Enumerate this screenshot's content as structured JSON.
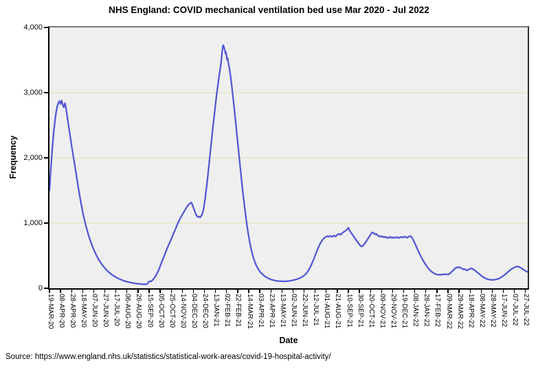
{
  "source": {
    "text": "Source: https://www.england.nhs.uk/statistics/statistical-work-areas/covid-19-hospital-activity/"
  },
  "chart_data": {
    "type": "line",
    "title": "NHS England: COVID mechanical ventilation bed use Mar 2020 - Jul 2022",
    "xlabel": "Date",
    "ylabel": "Frequency",
    "x_unit": "days since 19-MAR-20",
    "x_range": [
      0,
      864
    ],
    "ylim": [
      0,
      4000
    ],
    "grid_on": true,
    "gridlines": [
      1000,
      2000,
      3000
    ],
    "legend": "none",
    "plot_bg": "#efefef",
    "grid_color": "#e5e2c0",
    "line_color": "#5358d4",
    "y_ticks": [
      {
        "value": 0,
        "label": "0"
      },
      {
        "value": 1000,
        "label": "1,000"
      },
      {
        "value": 2000,
        "label": "2,000"
      },
      {
        "value": 3000,
        "label": "3,000"
      },
      {
        "value": 4000,
        "label": "4,000"
      }
    ],
    "x_tick_step_days": 20,
    "x_tick_labels": [
      "19-MAR-20",
      "08-APR-20",
      "28-APR-20",
      "18-MAY-20",
      "07-JUN-20",
      "27-JUN-20",
      "17-JUL-20",
      "06-AUG-20",
      "26-AUG-20",
      "15-SEP-20",
      "05-OCT-20",
      "25-OCT-20",
      "14-NOV-20",
      "04-DEC-20",
      "24-DEC-20",
      "13-JAN-21",
      "02-FEB-21",
      "22-FEB-21",
      "14-MAR-21",
      "03-APR-21",
      "23-APR-21",
      "13-MAY-21",
      "02-JUN-21",
      "22-JUN-21",
      "12-JUL-21",
      "01-AUG-21",
      "21-AUG-21",
      "10-SEP-21",
      "30-SEP-21",
      "20-OCT-21",
      "09-NOV-21",
      "29-NOV-21",
      "19-DEC-21",
      "08-JAN-22",
      "28-JAN-22",
      "17-FEB-22",
      "09-MAR-22",
      "29-MAR-22",
      "18-APR-22",
      "08-MAY-22",
      "28-MAY-22",
      "17-JUN-22",
      "07-JUL-22",
      "27-JUL-22"
    ],
    "points": [
      [
        0,
        1500
      ],
      [
        2,
        1760
      ],
      [
        4,
        2010
      ],
      [
        6,
        2230
      ],
      [
        8,
        2420
      ],
      [
        10,
        2580
      ],
      [
        12,
        2700
      ],
      [
        14,
        2790
      ],
      [
        16,
        2845
      ],
      [
        18,
        2870
      ],
      [
        20,
        2825
      ],
      [
        22,
        2880
      ],
      [
        24,
        2815
      ],
      [
        26,
        2775
      ],
      [
        28,
        2840
      ],
      [
        30,
        2755
      ],
      [
        32,
        2640
      ],
      [
        34,
        2520
      ],
      [
        36,
        2410
      ],
      [
        38,
        2300
      ],
      [
        40,
        2190
      ],
      [
        43,
        2030
      ],
      [
        46,
        1870
      ],
      [
        49,
        1710
      ],
      [
        52,
        1550
      ],
      [
        55,
        1400
      ],
      [
        58,
        1260
      ],
      [
        61,
        1130
      ],
      [
        64,
        1020
      ],
      [
        67,
        920
      ],
      [
        70,
        830
      ],
      [
        73,
        750
      ],
      [
        76,
        680
      ],
      [
        79,
        615
      ],
      [
        82,
        555
      ],
      [
        85,
        500
      ],
      [
        88,
        455
      ],
      [
        91,
        412
      ],
      [
        94,
        374
      ],
      [
        97,
        340
      ],
      [
        100,
        309
      ],
      [
        103,
        281
      ],
      [
        106,
        256
      ],
      [
        109,
        234
      ],
      [
        112,
        214
      ],
      [
        115,
        196
      ],
      [
        118,
        180
      ],
      [
        121,
        165
      ],
      [
        124,
        152
      ],
      [
        127,
        140
      ],
      [
        130,
        129
      ],
      [
        133,
        119
      ],
      [
        136,
        111
      ],
      [
        139,
        103
      ],
      [
        142,
        96
      ],
      [
        145,
        90
      ],
      [
        148,
        85
      ],
      [
        151,
        80
      ],
      [
        154,
        76
      ],
      [
        157,
        72
      ],
      [
        160,
        69
      ],
      [
        163,
        66
      ],
      [
        166,
        64
      ],
      [
        169,
        62
      ],
      [
        172,
        61
      ],
      [
        175,
        62
      ],
      [
        177,
        70
      ],
      [
        179,
        95
      ],
      [
        181,
        108
      ],
      [
        183,
        103
      ],
      [
        185,
        115
      ],
      [
        188,
        142
      ],
      [
        191,
        178
      ],
      [
        194,
        222
      ],
      [
        197,
        275
      ],
      [
        200,
        338
      ],
      [
        203,
        405
      ],
      [
        206,
        470
      ],
      [
        209,
        535
      ],
      [
        212,
        598
      ],
      [
        215,
        658
      ],
      [
        218,
        716
      ],
      [
        221,
        775
      ],
      [
        224,
        836
      ],
      [
        227,
        896
      ],
      [
        230,
        958
      ],
      [
        233,
        1018
      ],
      [
        236,
        1068
      ],
      [
        239,
        1114
      ],
      [
        242,
        1158
      ],
      [
        245,
        1202
      ],
      [
        248,
        1244
      ],
      [
        251,
        1278
      ],
      [
        254,
        1302
      ],
      [
        256,
        1315
      ],
      [
        258,
        1288
      ],
      [
        260,
        1240
      ],
      [
        262,
        1190
      ],
      [
        264,
        1146
      ],
      [
        266,
        1112
      ],
      [
        268,
        1092
      ],
      [
        270,
        1102
      ],
      [
        272,
        1086
      ],
      [
        274,
        1104
      ],
      [
        276,
        1140
      ],
      [
        278,
        1198
      ],
      [
        280,
        1300
      ],
      [
        282,
        1430
      ],
      [
        284,
        1568
      ],
      [
        286,
        1718
      ],
      [
        288,
        1878
      ],
      [
        290,
        2040
      ],
      [
        292,
        2200
      ],
      [
        294,
        2360
      ],
      [
        296,
        2520
      ],
      [
        298,
        2678
      ],
      [
        300,
        2830
      ],
      [
        302,
        2968
      ],
      [
        304,
        3098
      ],
      [
        306,
        3222
      ],
      [
        308,
        3338
      ],
      [
        310,
        3450
      ],
      [
        311,
        3540
      ],
      [
        312,
        3625
      ],
      [
        313,
        3695
      ],
      [
        314,
        3730
      ],
      [
        315,
        3705
      ],
      [
        316,
        3672
      ],
      [
        317,
        3648
      ],
      [
        318,
        3598
      ],
      [
        319,
        3618
      ],
      [
        320,
        3560
      ],
      [
        321,
        3505
      ],
      [
        322,
        3528
      ],
      [
        323,
        3465
      ],
      [
        325,
        3380
      ],
      [
        327,
        3268
      ],
      [
        329,
        3130
      ],
      [
        331,
        2980
      ],
      [
        333,
        2820
      ],
      [
        335,
        2660
      ],
      [
        337,
        2495
      ],
      [
        339,
        2330
      ],
      [
        341,
        2160
      ],
      [
        343,
        1995
      ],
      [
        345,
        1830
      ],
      [
        347,
        1665
      ],
      [
        349,
        1505
      ],
      [
        351,
        1355
      ],
      [
        353,
        1215
      ],
      [
        355,
        1080
      ],
      [
        357,
        955
      ],
      [
        359,
        845
      ],
      [
        361,
        745
      ],
      [
        363,
        655
      ],
      [
        365,
        578
      ],
      [
        367,
        510
      ],
      [
        369,
        452
      ],
      [
        371,
        404
      ],
      [
        373,
        362
      ],
      [
        375,
        326
      ],
      [
        377,
        297
      ],
      [
        379,
        271
      ],
      [
        381,
        249
      ],
      [
        383,
        230
      ],
      [
        385,
        213
      ],
      [
        387,
        198
      ],
      [
        389,
        185
      ],
      [
        391,
        174
      ],
      [
        393,
        163
      ],
      [
        395,
        154
      ],
      [
        397,
        146
      ],
      [
        399,
        139
      ],
      [
        401,
        133
      ],
      [
        403,
        128
      ],
      [
        405,
        123
      ],
      [
        407,
        119
      ],
      [
        409,
        116
      ],
      [
        411,
        113
      ],
      [
        413,
        111
      ],
      [
        415,
        109
      ],
      [
        417,
        108
      ],
      [
        419,
        107
      ],
      [
        421,
        106
      ],
      [
        424,
        106
      ],
      [
        427,
        107
      ],
      [
        430,
        109
      ],
      [
        433,
        112
      ],
      [
        436,
        116
      ],
      [
        439,
        121
      ],
      [
        442,
        127
      ],
      [
        445,
        134
      ],
      [
        448,
        142
      ],
      [
        451,
        152
      ],
      [
        454,
        164
      ],
      [
        457,
        178
      ],
      [
        460,
        196
      ],
      [
        463,
        218
      ],
      [
        466,
        248
      ],
      [
        469,
        288
      ],
      [
        472,
        338
      ],
      [
        475,
        395
      ],
      [
        478,
        458
      ],
      [
        481,
        525
      ],
      [
        484,
        590
      ],
      [
        487,
        648
      ],
      [
        490,
        698
      ],
      [
        493,
        738
      ],
      [
        496,
        768
      ],
      [
        499,
        788
      ],
      [
        502,
        800
      ],
      [
        505,
        790
      ],
      [
        508,
        804
      ],
      [
        511,
        788
      ],
      [
        514,
        810
      ],
      [
        517,
        794
      ],
      [
        520,
        822
      ],
      [
        523,
        836
      ],
      [
        526,
        820
      ],
      [
        529,
        846
      ],
      [
        532,
        866
      ],
      [
        535,
        882
      ],
      [
        538,
        906
      ],
      [
        540,
        928
      ],
      [
        542,
        892
      ],
      [
        544,
        862
      ],
      [
        546,
        840
      ],
      [
        548,
        815
      ],
      [
        550,
        790
      ],
      [
        552,
        764
      ],
      [
        554,
        740
      ],
      [
        556,
        716
      ],
      [
        558,
        694
      ],
      [
        560,
        672
      ],
      [
        562,
        652
      ],
      [
        564,
        640
      ],
      [
        566,
        652
      ],
      [
        568,
        668
      ],
      [
        570,
        690
      ],
      [
        572,
        716
      ],
      [
        574,
        742
      ],
      [
        576,
        768
      ],
      [
        578,
        796
      ],
      [
        580,
        822
      ],
      [
        582,
        846
      ],
      [
        584,
        858
      ],
      [
        586,
        842
      ],
      [
        588,
        826
      ],
      [
        590,
        838
      ],
      [
        592,
        820
      ],
      [
        594,
        806
      ],
      [
        596,
        792
      ],
      [
        598,
        802
      ],
      [
        600,
        788
      ],
      [
        602,
        796
      ],
      [
        604,
        782
      ],
      [
        606,
        790
      ],
      [
        608,
        776
      ],
      [
        610,
        784
      ],
      [
        612,
        772
      ],
      [
        614,
        780
      ],
      [
        616,
        788
      ],
      [
        618,
        774
      ],
      [
        620,
        782
      ],
      [
        622,
        770
      ],
      [
        624,
        778
      ],
      [
        626,
        786
      ],
      [
        628,
        774
      ],
      [
        630,
        784
      ],
      [
        632,
        772
      ],
      [
        634,
        780
      ],
      [
        636,
        790
      ],
      [
        638,
        778
      ],
      [
        640,
        786
      ],
      [
        642,
        794
      ],
      [
        644,
        782
      ],
      [
        646,
        774
      ],
      [
        648,
        786
      ],
      [
        650,
        796
      ],
      [
        652,
        802
      ],
      [
        654,
        786
      ],
      [
        656,
        760
      ],
      [
        658,
        728
      ],
      [
        660,
        692
      ],
      [
        662,
        654
      ],
      [
        664,
        616
      ],
      [
        666,
        578
      ],
      [
        668,
        542
      ],
      [
        670,
        507
      ],
      [
        672,
        474
      ],
      [
        674,
        442
      ],
      [
        676,
        412
      ],
      [
        678,
        384
      ],
      [
        680,
        358
      ],
      [
        682,
        334
      ],
      [
        684,
        312
      ],
      [
        686,
        292
      ],
      [
        688,
        274
      ],
      [
        690,
        258
      ],
      [
        692,
        245
      ],
      [
        694,
        233
      ],
      [
        696,
        224
      ],
      [
        698,
        217
      ],
      [
        700,
        211
      ],
      [
        702,
        207
      ],
      [
        704,
        210
      ],
      [
        706,
        205
      ],
      [
        708,
        213
      ],
      [
        710,
        208
      ],
      [
        712,
        216
      ],
      [
        714,
        211
      ],
      [
        716,
        219
      ],
      [
        718,
        214
      ],
      [
        720,
        210
      ],
      [
        722,
        219
      ],
      [
        724,
        231
      ],
      [
        726,
        246
      ],
      [
        728,
        263
      ],
      [
        730,
        281
      ],
      [
        732,
        298
      ],
      [
        734,
        312
      ],
      [
        736,
        322
      ],
      [
        738,
        315
      ],
      [
        740,
        326
      ],
      [
        742,
        318
      ],
      [
        744,
        308
      ],
      [
        746,
        298
      ],
      [
        748,
        289
      ],
      [
        750,
        296
      ],
      [
        752,
        284
      ],
      [
        754,
        274
      ],
      [
        756,
        281
      ],
      [
        758,
        290
      ],
      [
        760,
        299
      ],
      [
        762,
        306
      ],
      [
        764,
        297
      ],
      [
        766,
        288
      ],
      [
        768,
        277
      ],
      [
        770,
        264
      ],
      [
        772,
        250
      ],
      [
        774,
        236
      ],
      [
        776,
        222
      ],
      [
        778,
        208
      ],
      [
        780,
        194
      ],
      [
        782,
        182
      ],
      [
        784,
        170
      ],
      [
        786,
        160
      ],
      [
        788,
        151
      ],
      [
        790,
        144
      ],
      [
        792,
        138
      ],
      [
        794,
        134
      ],
      [
        796,
        131
      ],
      [
        798,
        129
      ],
      [
        800,
        128
      ],
      [
        802,
        129
      ],
      [
        804,
        131
      ],
      [
        806,
        134
      ],
      [
        808,
        138
      ],
      [
        810,
        143
      ],
      [
        812,
        150
      ],
      [
        814,
        158
      ],
      [
        816,
        168
      ],
      [
        818,
        179
      ],
      [
        820,
        191
      ],
      [
        822,
        204
      ],
      [
        824,
        218
      ],
      [
        826,
        233
      ],
      [
        828,
        248
      ],
      [
        830,
        262
      ],
      [
        832,
        276
      ],
      [
        834,
        289
      ],
      [
        836,
        301
      ],
      [
        838,
        311
      ],
      [
        840,
        320
      ],
      [
        842,
        327
      ],
      [
        844,
        332
      ],
      [
        846,
        334
      ],
      [
        848,
        329
      ],
      [
        850,
        321
      ],
      [
        852,
        311
      ],
      [
        854,
        300
      ],
      [
        856,
        289
      ],
      [
        858,
        277
      ],
      [
        860,
        266
      ],
      [
        862,
        257
      ],
      [
        864,
        251
      ]
    ]
  }
}
